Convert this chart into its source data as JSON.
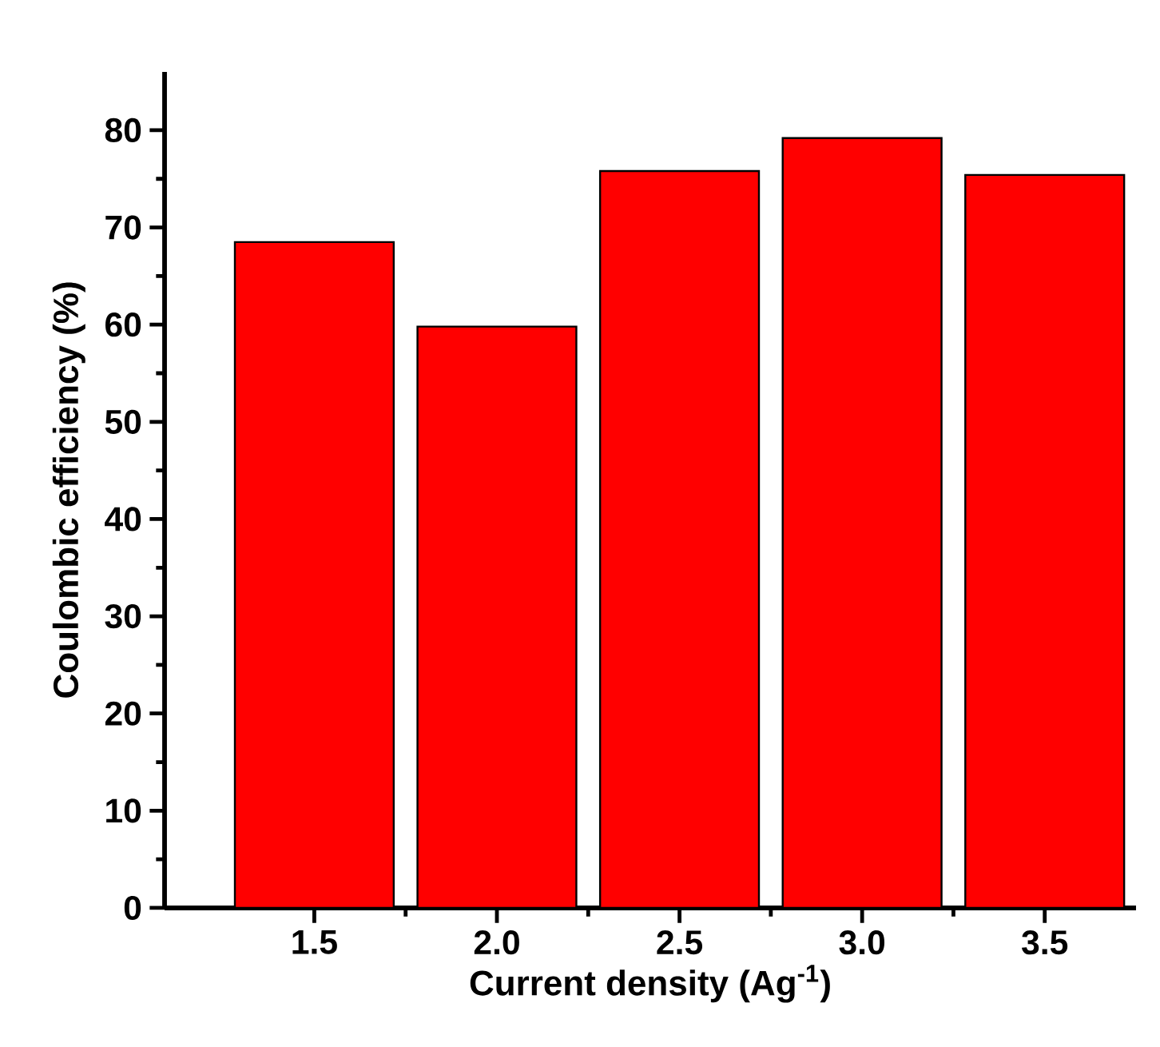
{
  "chart_data": {
    "type": "bar",
    "xlabel": "Current density (Ag$^{-1}$)",
    "ylabel": "Coulombic efficiency (%)",
    "x": [
      1.5,
      2.0,
      2.5,
      3.0,
      3.5
    ],
    "values": [
      68.5,
      59.8,
      75.8,
      79.2,
      75.4
    ],
    "color": "#ff0000",
    "xlim": [
      1.09,
      3.75
    ],
    "ylim": [
      0,
      86
    ],
    "xticks": [
      1.5,
      {
        "value": 2,
        "label": "2.0"
      },
      2.5,
      {
        "value": 3,
        "label": "3.0"
      },
      3.5
    ],
    "yticks": [
      0,
      10,
      20,
      30,
      40,
      50,
      60,
      70,
      80
    ],
    "grid": false
  }
}
